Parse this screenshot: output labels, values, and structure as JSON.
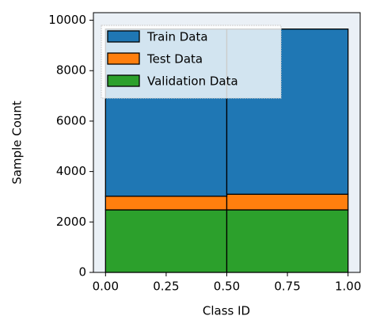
{
  "chart_data": {
    "type": "stacked_histogram",
    "xlabel": "Class ID",
    "ylabel": "Sample Count",
    "bins": [
      0,
      0.5,
      1.0
    ],
    "series": [
      {
        "name": "Train Data",
        "color": "#1f77b4",
        "values": [
          6630,
          6550
        ]
      },
      {
        "name": "Test Data",
        "color": "#ff7f0e",
        "values": [
          540,
          620
        ]
      },
      {
        "name": "Validation Data",
        "color": "#2ca02c",
        "values": [
          2480,
          2480
        ]
      }
    ],
    "xlim": [
      -0.05,
      1.05
    ],
    "xticks": [
      {
        "value": 0,
        "label": "0.00"
      },
      {
        "value": 0.25,
        "label": "0.25"
      },
      {
        "value": 0.5,
        "label": "0.50"
      },
      {
        "value": 0.75,
        "label": "0.75"
      },
      {
        "value": 1.0,
        "label": "1.00"
      }
    ],
    "ylim": [
      0,
      10300
    ],
    "yticks": [
      0,
      2000,
      4000,
      6000,
      8000,
      10000
    ],
    "legend": "upper left"
  }
}
